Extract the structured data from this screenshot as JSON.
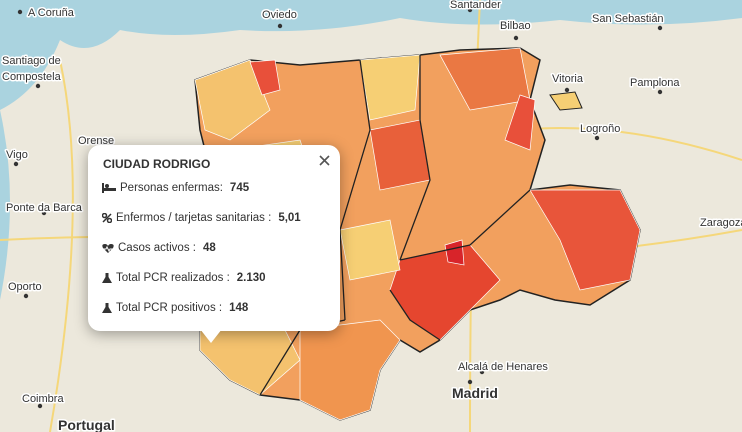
{
  "map": {
    "labels": [
      {
        "text": "A Coruña"
      },
      {
        "text": "Oviedo"
      },
      {
        "text": "Santander"
      },
      {
        "text": "Bilbao"
      },
      {
        "text": "San Sebastián"
      },
      {
        "text": "Santiago de"
      },
      {
        "text": "Compostela"
      },
      {
        "text": "Vitoria"
      },
      {
        "text": "Pamplona"
      },
      {
        "text": "Logroño"
      },
      {
        "text": "Orense"
      },
      {
        "text": "Vigo"
      },
      {
        "text": "Ponte da Barca"
      },
      {
        "text": "Zaragoza"
      },
      {
        "text": "Oporto"
      },
      {
        "text": "Alcalá de Henares"
      },
      {
        "text": "Madrid"
      },
      {
        "text": "Coimbra"
      },
      {
        "text": "Portugal"
      }
    ]
  },
  "popup": {
    "title": "CIUDAD RODRIGO",
    "rows": [
      {
        "label": "Personas enfermas:",
        "value": "745"
      },
      {
        "label": "Enfermos / tarjetas sanitarias :",
        "value": "5,01"
      },
      {
        "label": "Casos activos :",
        "value": "48"
      },
      {
        "label": "Total PCR realizados :",
        "value": "2.130"
      },
      {
        "label": "Total PCR positivos :",
        "value": "148"
      }
    ]
  }
}
